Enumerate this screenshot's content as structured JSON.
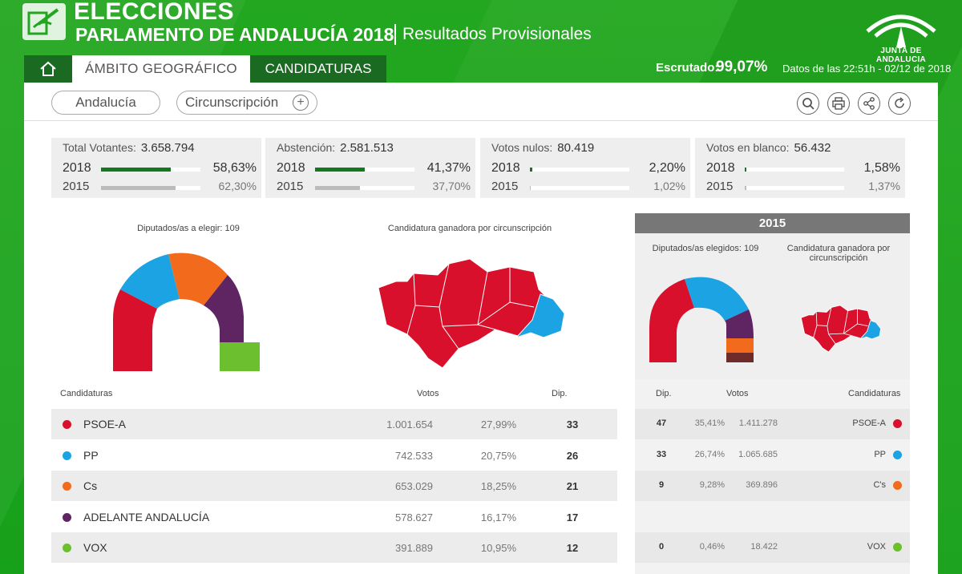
{
  "header": {
    "title_line1": "ELECCIONES",
    "title_line2": "PARLAMENTO DE ANDALUCÍA 2018",
    "title_line3": "Resultados Provisionales",
    "brand": "JUNTA DE ANDALUCIA"
  },
  "nav": {
    "tab_ambito": "ÁMBITO GEOGRÁFICO",
    "tab_candidaturas": "CANDIDATURAS",
    "escrutado_label": "Escrutado:",
    "escrutado_value": "99,07%",
    "datos": "Datos de las 22:51h - 02/12 de 2018"
  },
  "filters": {
    "region": "Andalucía",
    "circunscripcion": "Circunscripción"
  },
  "tools": [
    "search-icon",
    "print-icon",
    "share-icon",
    "refresh-icon"
  ],
  "stats": [
    {
      "label": "Total Votantes:",
      "value": "3.658.794",
      "y2018": "2018",
      "pct2018": "58,63%",
      "frac2018": 0.5863,
      "y2015": "2015",
      "pct2015": "62,30%",
      "frac2015": 0.623
    },
    {
      "label": "Abstención:",
      "value": "2.581.513",
      "y2018": "2018",
      "pct2018": "41,37%",
      "frac2018": 0.4137,
      "y2015": "2015",
      "pct2015": "37,70%",
      "frac2015": 0.377
    },
    {
      "label": "Votos nulos:",
      "value": "80.419",
      "y2018": "2018",
      "pct2018": "2,20%",
      "frac2018": 0.022,
      "y2015": "2015",
      "pct2015": "1,02%",
      "frac2015": 0.0102
    },
    {
      "label": "Votos en blanco:",
      "value": "56.432",
      "y2018": "2018",
      "pct2018": "1,58%",
      "frac2018": 0.0158,
      "y2015": "2015",
      "pct2015": "1,37%",
      "frac2015": 0.0137
    }
  ],
  "charts": {
    "diputados_label": "Diputados/as a elegir: 109",
    "ganadora_label": "Candidatura ganadora por circunscripción",
    "box2015_title": "2015",
    "diputados_2015_label": "Diputados/as elegidos: 109",
    "ganadora_2015_label": "Candidatura ganadora por circunscripción"
  },
  "colors": {
    "psoe": "#d8102c",
    "pp": "#1ba3e4",
    "cs": "#f26b1c",
    "adelante": "#5f2563",
    "vox": "#6cbf2f",
    "podemos_2015": "#6f2a2a"
  },
  "table": {
    "head_cand": "Candidaturas",
    "head_votos": "Votos",
    "head_dip": "Dip.",
    "head_r_dip": "Dip.",
    "head_r_votos": "Votos",
    "head_r_cand": "Candidaturas",
    "rows": [
      {
        "name": "PSOE-A",
        "votos": "1.001.654",
        "pct": "27,99%",
        "dip": "33",
        "color": "#d8102c",
        "r_dip": "47",
        "r_pct": "35,41%",
        "r_votos": "1.411.278",
        "r_name": "PSOE-A"
      },
      {
        "name": "PP",
        "votos": "742.533",
        "pct": "20,75%",
        "dip": "26",
        "color": "#1ba3e4",
        "r_dip": "33",
        "r_pct": "26,74%",
        "r_votos": "1.065.685",
        "r_name": "PP"
      },
      {
        "name": "Cs",
        "votos": "653.029",
        "pct": "18,25%",
        "dip": "21",
        "color": "#f26b1c",
        "r_dip": "9",
        "r_pct": "9,28%",
        "r_votos": "369.896",
        "r_name": "C's"
      },
      {
        "name": "ADELANTE ANDALUCÍA",
        "votos": "578.627",
        "pct": "16,17%",
        "dip": "17",
        "color": "#5f2563",
        "r_dip": "",
        "r_pct": "",
        "r_votos": "",
        "r_name": ""
      },
      {
        "name": "VOX",
        "votos": "391.889",
        "pct": "10,95%",
        "dip": "12",
        "color": "#6cbf2f",
        "r_dip": "0",
        "r_pct": "0,46%",
        "r_votos": "18.422",
        "r_name": "VOX"
      }
    ]
  }
}
